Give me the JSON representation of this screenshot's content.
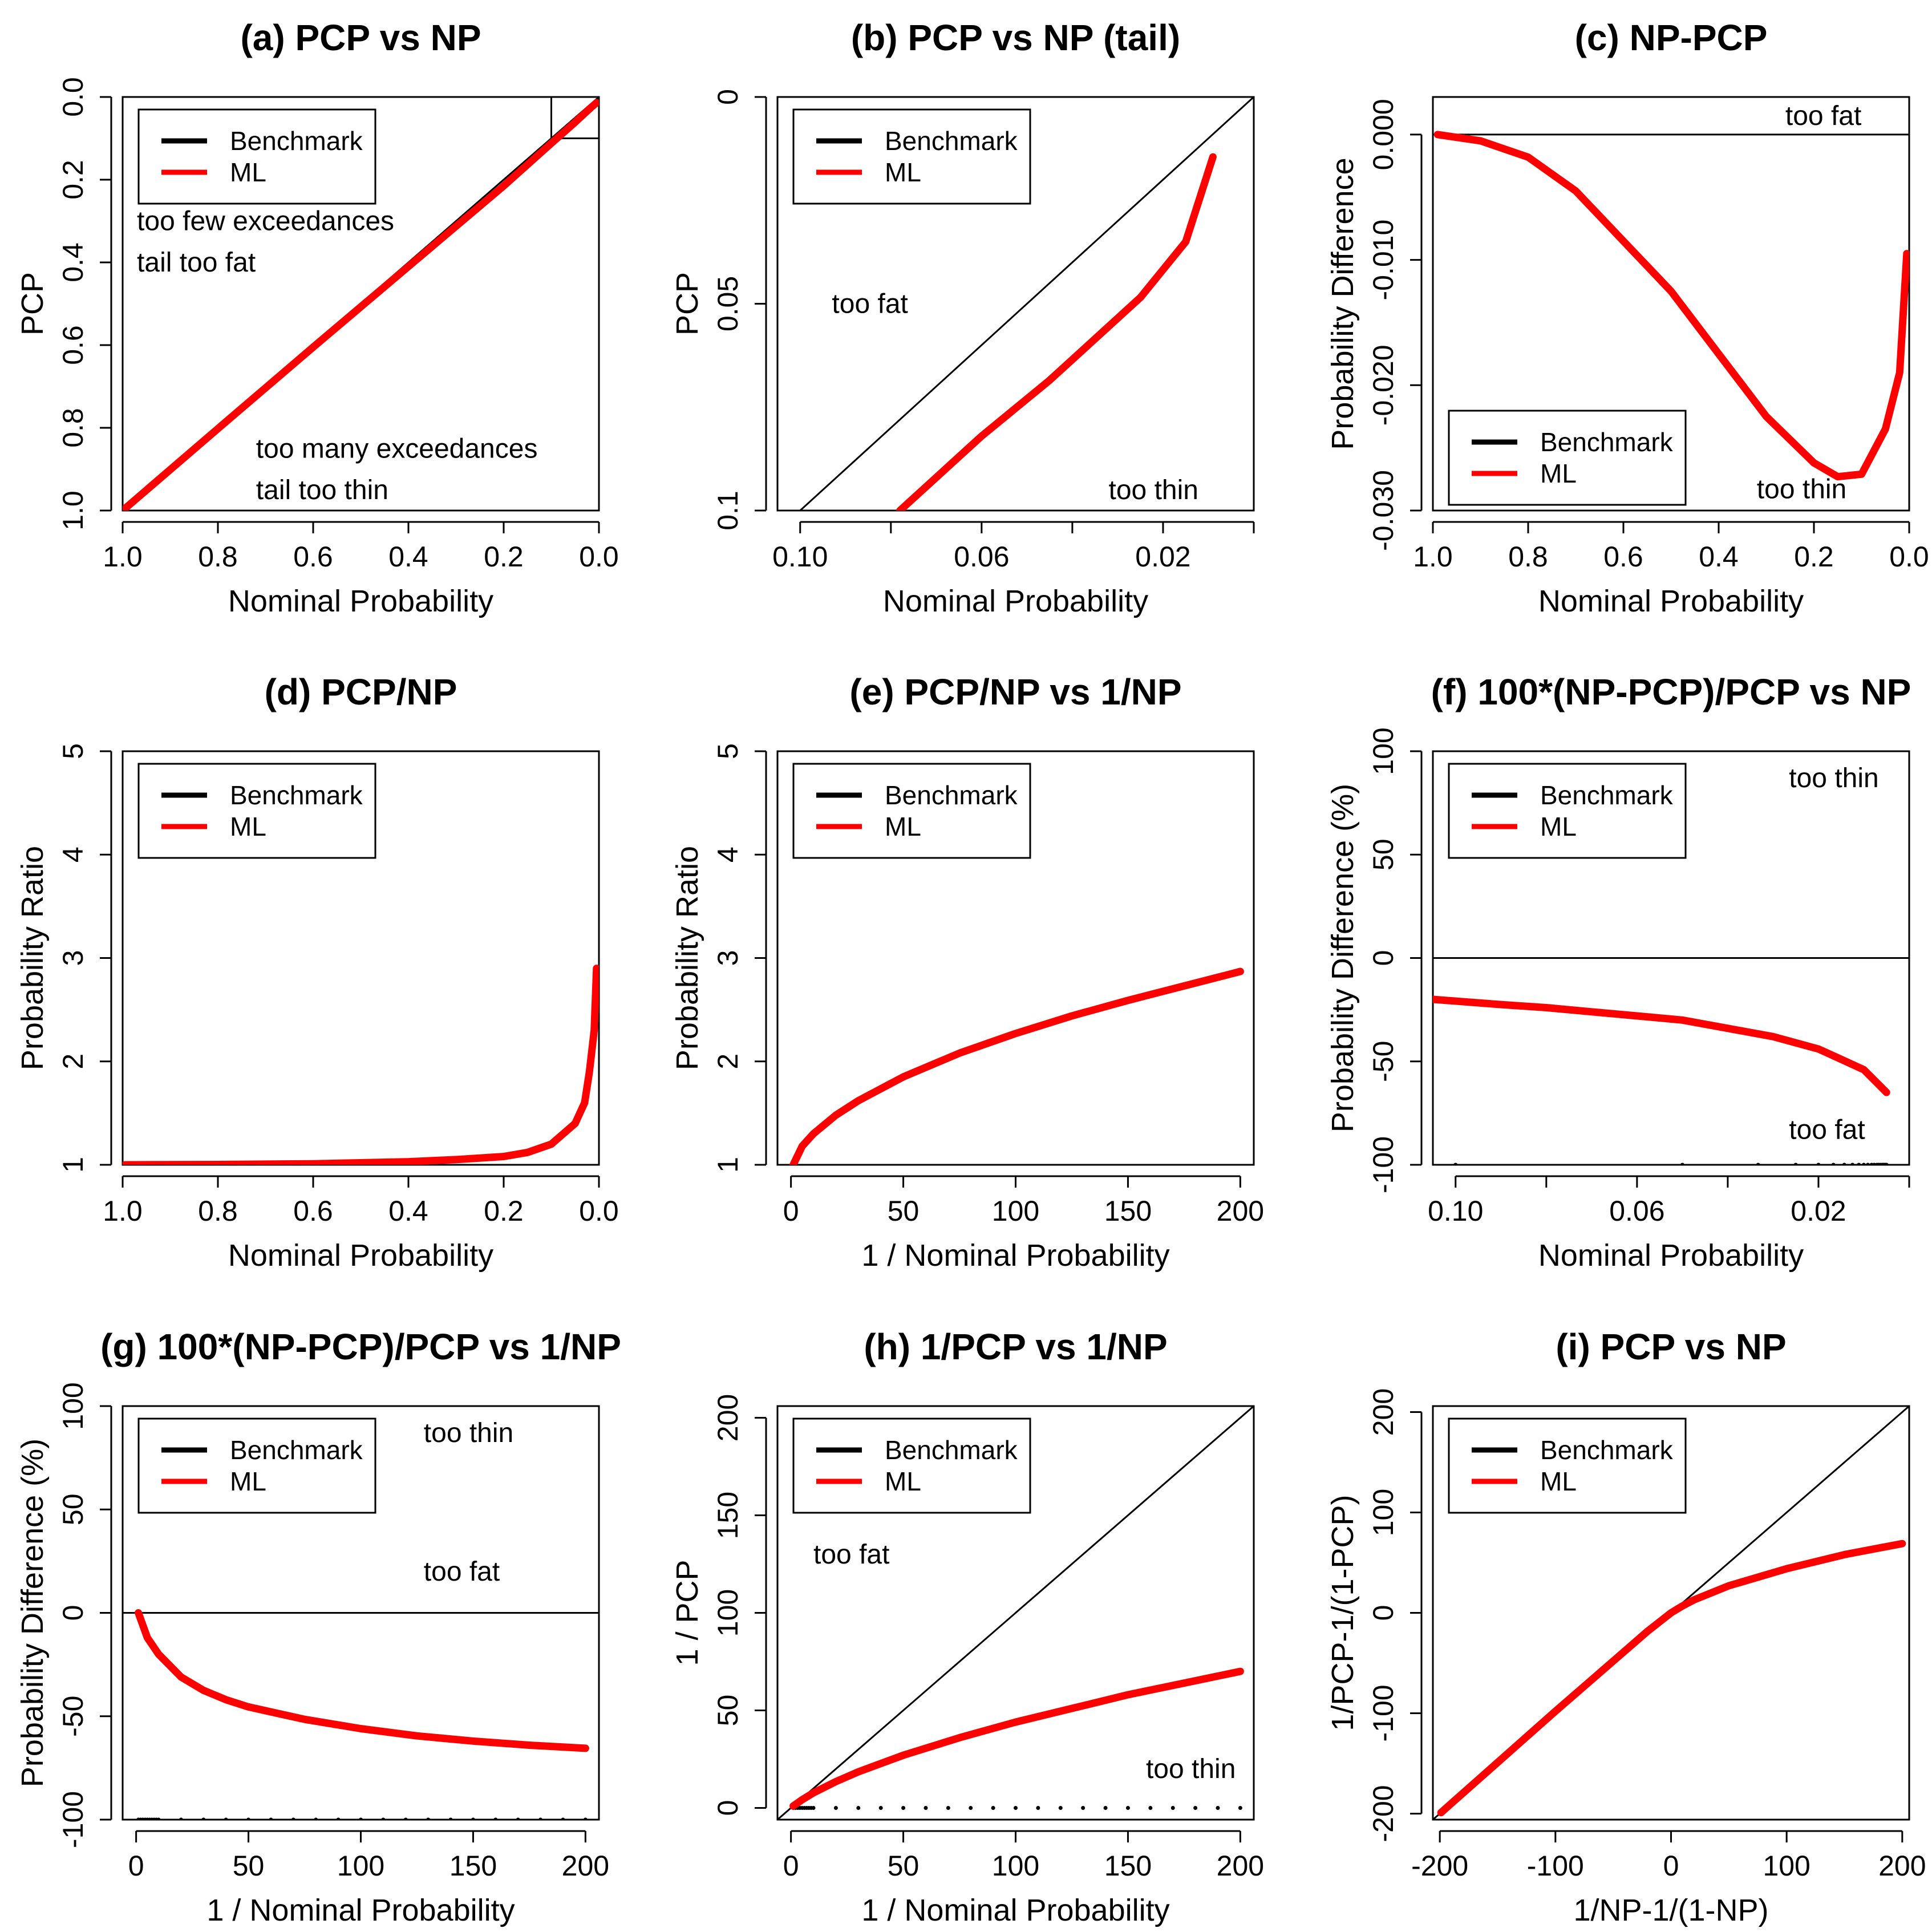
{
  "colors": {
    "benchmark": "#000000",
    "ml": "#ff0000"
  },
  "legend": {
    "benchmark": "Benchmark",
    "ml": "ML"
  },
  "chart_data": [
    {
      "id": "a",
      "type": "line",
      "title": "(a) PCP vs NP",
      "xlabel": "Nominal Probability",
      "ylabel": "PCP",
      "xlim": [
        1.0,
        0.0
      ],
      "ylim": [
        1.0,
        0.0
      ],
      "xticks": [
        1.0,
        0.8,
        0.6,
        0.4,
        0.2,
        0.0
      ],
      "xtick_labels": [
        "1.0",
        "0.8",
        "0.6",
        "0.4",
        "0.2",
        "0.0"
      ],
      "yticks": [
        0.0,
        0.2,
        0.4,
        0.6,
        0.8,
        1.0
      ],
      "ytick_labels": [
        "0.0",
        "0.2",
        "0.4",
        "0.6",
        "0.8",
        "1.0"
      ],
      "ytick_rotate": true,
      "refline": {
        "type": "diag",
        "from": [
          1.0,
          1.0
        ],
        "to": [
          0.0,
          0.0
        ]
      },
      "series": [
        {
          "name": "ML",
          "x": [
            0.995,
            0.8,
            0.6,
            0.4,
            0.2,
            0.1,
            0.05,
            0.02,
            0.005
          ],
          "y": [
            0.995,
            0.802,
            0.605,
            0.41,
            0.215,
            0.112,
            0.061,
            0.029,
            0.014
          ]
        }
      ],
      "zoom_box": {
        "x": [
          0.1,
          0.0
        ],
        "y": [
          0.1,
          0.0
        ]
      },
      "annotations": [
        {
          "text": "too few exceedances",
          "x": 0.97,
          "y": 0.3
        },
        {
          "text": "tail too fat",
          "x": 0.97,
          "y": 0.4
        },
        {
          "text": "too many exceedances",
          "x": 0.72,
          "y": 0.85
        },
        {
          "text": "tail too thin",
          "x": 0.72,
          "y": 0.95
        }
      ],
      "legend_pos": "top-left"
    },
    {
      "id": "b",
      "type": "line",
      "title": "(b) PCP vs NP (tail)",
      "xlabel": "Nominal Probability",
      "ylabel": "PCP",
      "xlim": [
        0.105,
        0.0
      ],
      "ylim": [
        0.1,
        0.0
      ],
      "xticks": [
        0.1,
        0.08,
        0.06,
        0.04,
        0.02,
        0.0
      ],
      "xtick_labels": [
        "0.10",
        "",
        "0.06",
        "",
        "0.02",
        ""
      ],
      "yticks": [
        0.0,
        0.05,
        0.1
      ],
      "ytick_labels": [
        "0",
        "0.05",
        "0.1"
      ],
      "ytick_rotate": true,
      "refline": {
        "type": "diag",
        "from": [
          0.105,
          0.105
        ],
        "to": [
          0.0,
          0.0
        ]
      },
      "series": [
        {
          "name": "ML",
          "x": [
            0.078,
            0.06,
            0.045,
            0.035,
            0.025,
            0.015,
            0.009
          ],
          "y": [
            0.1,
            0.082,
            0.0685,
            0.0585,
            0.0485,
            0.035,
            0.0145
          ]
        }
      ],
      "annotations": [
        {
          "text": "too fat",
          "x": 0.093,
          "y": 0.05
        },
        {
          "text": "too thin",
          "x": 0.032,
          "y": 0.095
        }
      ],
      "legend_pos": "top-left"
    },
    {
      "id": "c",
      "type": "line",
      "title": "(c) NP-PCP",
      "xlabel": "Nominal Probability",
      "ylabel": "Probability Difference",
      "xlim": [
        1.0,
        0.0
      ],
      "ylim": [
        -0.03,
        0.003
      ],
      "xticks": [
        1.0,
        0.8,
        0.6,
        0.4,
        0.2,
        0.0
      ],
      "xtick_labels": [
        "1.0",
        "0.8",
        "0.6",
        "0.4",
        "0.2",
        "0.0"
      ],
      "yticks": [
        0.0,
        -0.01,
        -0.02,
        -0.03
      ],
      "ytick_labels": [
        "0.000",
        "-0.010",
        "-0.020",
        "-0.030"
      ],
      "ytick_rotate": true,
      "refline": {
        "type": "h",
        "value": 0
      },
      "series": [
        {
          "name": "ML",
          "x": [
            0.99,
            0.9,
            0.8,
            0.7,
            0.6,
            0.5,
            0.4,
            0.3,
            0.2,
            0.15,
            0.1,
            0.05,
            0.02,
            0.005
          ],
          "y": [
            0.0,
            -0.0005,
            -0.0018,
            -0.0045,
            -0.0085,
            -0.0125,
            -0.0175,
            -0.0225,
            -0.0262,
            -0.0273,
            -0.0271,
            -0.0235,
            -0.019,
            -0.0095
          ]
        }
      ],
      "annotations": [
        {
          "text": "too fat",
          "x": 0.26,
          "y": 0.0015
        },
        {
          "text": "too thin",
          "x": 0.32,
          "y": -0.0283
        }
      ],
      "legend_pos": "bottom-left"
    },
    {
      "id": "d",
      "type": "line",
      "title": "(d) PCP/NP",
      "xlabel": "Nominal Probability",
      "ylabel": "Probability Ratio",
      "xlim": [
        1.0,
        0.0
      ],
      "ylim": [
        1,
        5
      ],
      "xticks": [
        1.0,
        0.8,
        0.6,
        0.4,
        0.2,
        0.0
      ],
      "xtick_labels": [
        "1.0",
        "0.8",
        "0.6",
        "0.4",
        "0.2",
        "0.0"
      ],
      "yticks": [
        1,
        2,
        3,
        4,
        5
      ],
      "ytick_labels": [
        "1",
        "2",
        "3",
        "4",
        "5"
      ],
      "ytick_rotate": true,
      "refline": {
        "type": "h",
        "value": 1
      },
      "series": [
        {
          "name": "ML",
          "x": [
            0.995,
            0.8,
            0.6,
            0.4,
            0.3,
            0.2,
            0.15,
            0.1,
            0.05,
            0.03,
            0.02,
            0.01,
            0.005
          ],
          "y": [
            1.0,
            1.003,
            1.01,
            1.03,
            1.05,
            1.08,
            1.12,
            1.2,
            1.4,
            1.6,
            1.9,
            2.3,
            2.9
          ]
        }
      ],
      "annotations": [],
      "legend_pos": "top-left"
    },
    {
      "id": "e",
      "type": "line",
      "title": "(e) PCP/NP vs 1/NP",
      "xlabel": "1 / Nominal Probability",
      "ylabel": "Probability Ratio",
      "xlim": [
        -6,
        206
      ],
      "ylim": [
        1,
        5
      ],
      "xticks": [
        0,
        50,
        100,
        150,
        200
      ],
      "xtick_labels": [
        "0",
        "50",
        "100",
        "150",
        "200"
      ],
      "yticks": [
        1,
        2,
        3,
        4,
        5
      ],
      "ytick_labels": [
        "1",
        "2",
        "3",
        "4",
        "5"
      ],
      "ytick_rotate": true,
      "refline": {
        "type": "h",
        "value": 1
      },
      "series": [
        {
          "name": "ML",
          "x": [
            1,
            5,
            10,
            20,
            30,
            50,
            75,
            100,
            125,
            150,
            175,
            200
          ],
          "y": [
            1.0,
            1.18,
            1.3,
            1.48,
            1.62,
            1.85,
            2.08,
            2.27,
            2.44,
            2.59,
            2.73,
            2.87
          ]
        }
      ],
      "annotations": [],
      "legend_pos": "top-left"
    },
    {
      "id": "f",
      "type": "line",
      "title": "(f) 100*(NP-PCP)/PCP vs NP",
      "xlabel": "Nominal Probability",
      "ylabel": "Probability Difference (%)",
      "xlim": [
        0.105,
        0.0
      ],
      "ylim": [
        -100,
        100
      ],
      "xticks": [
        0.1,
        0.08,
        0.06,
        0.04,
        0.02,
        0.0
      ],
      "xtick_labels": [
        "0.10",
        "",
        "0.06",
        "",
        "0.02",
        ""
      ],
      "yticks": [
        -100,
        -50,
        0,
        50,
        100
      ],
      "ytick_labels": [
        "-100",
        "-50",
        "0",
        "50",
        "100"
      ],
      "ytick_rotate": true,
      "refline": {
        "type": "h",
        "value": 0
      },
      "series": [
        {
          "name": "ML",
          "x": [
            0.105,
            0.09,
            0.08,
            0.07,
            0.06,
            0.05,
            0.04,
            0.03,
            0.02,
            0.015,
            0.01,
            0.005
          ],
          "y": [
            -20,
            -22.5,
            -24,
            -26,
            -28,
            -30,
            -34,
            -38,
            -44,
            -49,
            -54,
            -65
          ]
        }
      ],
      "dots": {
        "x": [
          0.1,
          0.05,
          0.0333,
          0.025,
          0.02,
          0.0167,
          0.0143,
          0.0125,
          0.0111,
          0.01,
          0.0091,
          0.0083,
          0.0077,
          0.0071,
          0.0067,
          0.0063,
          0.0059,
          0.0056,
          0.0053,
          0.005
        ],
        "y": -100
      },
      "annotations": [
        {
          "text": "too thin",
          "x": 0.0265,
          "y": 87
        },
        {
          "text": "too fat",
          "x": 0.0265,
          "y": -83
        }
      ],
      "legend_pos": "top-left"
    },
    {
      "id": "g",
      "type": "line",
      "title": "(g) 100*(NP-PCP)/PCP vs 1/NP",
      "xlabel": "1 / Nominal Probability",
      "ylabel": "Probability Difference (%)",
      "xlim": [
        -6,
        206
      ],
      "ylim": [
        -100,
        100
      ],
      "xticks": [
        0,
        50,
        100,
        150,
        200
      ],
      "xtick_labels": [
        "0",
        "50",
        "100",
        "150",
        "200"
      ],
      "yticks": [
        -100,
        -50,
        0,
        50,
        100
      ],
      "ytick_labels": [
        "-100",
        "-50",
        "0",
        "50",
        "100"
      ],
      "ytick_rotate": true,
      "refline": {
        "type": "h",
        "value": 0
      },
      "series": [
        {
          "name": "ML",
          "x": [
            1,
            5,
            10,
            20,
            30,
            40,
            50,
            75,
            100,
            125,
            150,
            175,
            200
          ],
          "y": [
            0,
            -12,
            -20,
            -31,
            -37.5,
            -42,
            -45.5,
            -51.5,
            -56,
            -59.5,
            -62,
            -64,
            -65.5
          ]
        }
      ],
      "dots": {
        "x": [
          1,
          2,
          3,
          4,
          5,
          6,
          7,
          8,
          9,
          10,
          20,
          30,
          40,
          50,
          60,
          70,
          80,
          90,
          100,
          110,
          120,
          130,
          140,
          150,
          160,
          170,
          180,
          190,
          200
        ],
        "y": -100
      },
      "annotations": [
        {
          "text": "too thin",
          "x": 128,
          "y": 87
        },
        {
          "text": "too fat",
          "x": 128,
          "y": 20
        }
      ],
      "legend_pos": "top-left"
    },
    {
      "id": "h",
      "type": "line",
      "title": "(h) 1/PCP vs 1/NP",
      "xlabel": "1 / Nominal Probability",
      "ylabel": "1 / PCP",
      "xlim": [
        -6,
        206
      ],
      "ylim": [
        -6,
        206
      ],
      "xticks": [
        0,
        50,
        100,
        150,
        200
      ],
      "xtick_labels": [
        "0",
        "50",
        "100",
        "150",
        "200"
      ],
      "yticks": [
        0,
        50,
        100,
        150,
        200
      ],
      "ytick_labels": [
        "0",
        "50",
        "100",
        "150",
        "200"
      ],
      "ytick_rotate": true,
      "refline": {
        "type": "diag",
        "from": [
          -6,
          -6
        ],
        "to": [
          206,
          206
        ]
      },
      "series": [
        {
          "name": "ML",
          "x": [
            1,
            5,
            10,
            20,
            30,
            50,
            75,
            100,
            125,
            150,
            175,
            200
          ],
          "y": [
            1,
            4.2,
            7.7,
            13.5,
            18.5,
            27,
            36,
            44,
            51,
            58,
            64,
            70
          ]
        }
      ],
      "dots": {
        "x": [
          1,
          2,
          3,
          4,
          5,
          6,
          7,
          8,
          9,
          10,
          20,
          30,
          40,
          50,
          60,
          70,
          80,
          90,
          100,
          110,
          120,
          130,
          140,
          150,
          160,
          170,
          180,
          190,
          200
        ],
        "y": 0
      },
      "annotations": [
        {
          "text": "too fat",
          "x": 10,
          "y": 130
        },
        {
          "text": "too thin",
          "x": 158,
          "y": 20
        }
      ],
      "legend_pos": "top-left"
    },
    {
      "id": "i",
      "type": "line",
      "title": "(i) PCP vs NP",
      "xlabel": "1/NP-1/(1-NP)",
      "ylabel": "1/PCP-1/(1-PCP)",
      "xlim": [
        -206,
        206
      ],
      "ylim": [
        -206,
        206
      ],
      "xticks": [
        -200,
        -100,
        0,
        100,
        200
      ],
      "xtick_labels": [
        "-200",
        "-100",
        "0",
        "100",
        "200"
      ],
      "yticks": [
        -200,
        -100,
        0,
        100,
        200
      ],
      "ytick_labels": [
        "-200",
        "-100",
        "0",
        "100",
        "200"
      ],
      "ytick_rotate": true,
      "refline": {
        "type": "diag",
        "from": [
          -206,
          -206
        ],
        "to": [
          206,
          206
        ]
      },
      "series": [
        {
          "name": "ML",
          "x": [
            -199,
            -150,
            -100,
            -50,
            -20,
            0,
            10,
            20,
            50,
            100,
            150,
            200
          ],
          "y": [
            -199,
            -149,
            -98,
            -48,
            -18,
            0,
            7,
            13,
            27,
            44,
            58,
            69
          ]
        }
      ],
      "annotations": [],
      "legend_pos": "top-left"
    }
  ]
}
